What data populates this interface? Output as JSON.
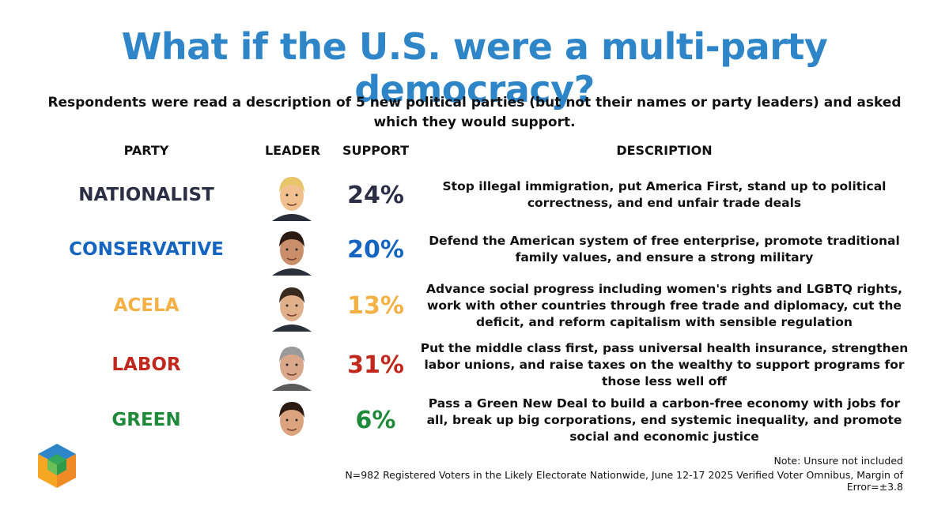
{
  "colors": {
    "title": "#2e86c8",
    "nationalist": "#2b2e45",
    "conservative": "#1565c0",
    "acela": "#f2b045",
    "labor": "#c1271c",
    "green": "#1e8a3a"
  },
  "title": "What if the U.S. were a multi-party democracy?",
  "subtitle": "Respondents were read a description of 5 new political parties (but not their names or party leaders) and asked which they would support.",
  "headers": {
    "party": "PARTY",
    "leader": "LEADER",
    "support": "SUPPORT",
    "description": "DESCRIPTION"
  },
  "chart_data": {
    "type": "table",
    "title": "What if the U.S. were a multi-party democracy?",
    "columns": [
      "PARTY",
      "LEADER",
      "SUPPORT",
      "DESCRIPTION"
    ],
    "rows": [
      {
        "party": "NATIONALIST",
        "leader_icon": "leader-portrait-icon",
        "support": "24%",
        "support_value": 24,
        "description": "Stop illegal immigration, put America First, stand up to political correctness, and end unfair trade deals",
        "color": "#2b2e45"
      },
      {
        "party": "CONSERVATIVE",
        "leader_icon": "leader-portrait-icon",
        "support": "20%",
        "support_value": 20,
        "description": "Defend the American system of free enterprise, promote traditional family values, and ensure a strong military",
        "color": "#1565c0"
      },
      {
        "party": "ACELA",
        "leader_icon": "leader-portrait-icon",
        "support": "13%",
        "support_value": 13,
        "description": "Advance social progress including women's rights and LGBTQ rights, work with other countries through free trade and diplomacy, cut the deficit, and reform capitalism with sensible regulation",
        "color": "#f2b045"
      },
      {
        "party": "LABOR",
        "leader_icon": "leader-portrait-icon",
        "support": "31%",
        "support_value": 31,
        "description": "Put the middle class first, pass universal health insurance, strengthen labor unions, and raise taxes on the wealthy to support programs for those less well off",
        "color": "#c1271c"
      },
      {
        "party": "GREEN",
        "leader_icon": "leader-portrait-icon",
        "support": "6%",
        "support_value": 6,
        "description": "Pass a Green New Deal to build a carbon-free economy with jobs for all, break up big corporations, end systemic inequality, and promote social and economic justice",
        "color": "#1e8a3a"
      }
    ]
  },
  "footer": {
    "logo_icon": "hexagon-cube-logo-icon",
    "note": "Note: Unsure not included",
    "source": "N=982 Registered Voters in the Likely Electorate Nationwide, June 12-17 2025 Verified Voter Omnibus, Margin of Error=±3.8"
  }
}
